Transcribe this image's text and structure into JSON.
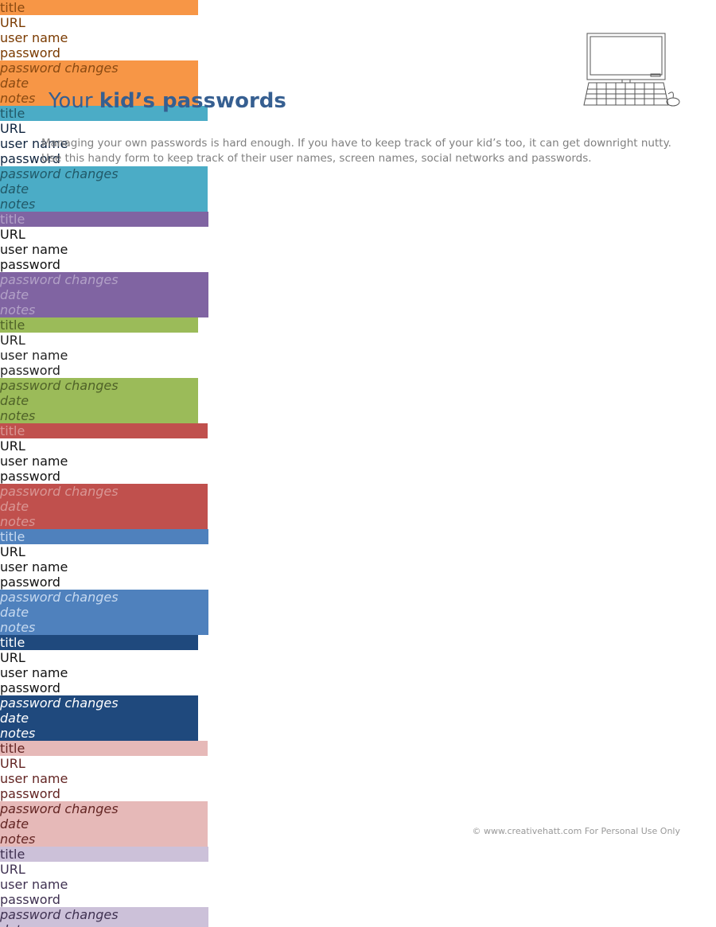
{
  "header": {
    "title_regular": "Your",
    "title_bold": "kid’s passwords",
    "intro": "Managing your own passwords is hard enough. If you have to keep track of your kid’s too, it can get downright nutty. Use this handy form to keep track of their user names, screen names, social networks and passwords."
  },
  "form": {
    "fields": {
      "title": "title",
      "url": "URL",
      "user_name": "user name",
      "password": "password",
      "password_changes": "password changes",
      "date": "date",
      "notes": "notes"
    },
    "cards": [
      {
        "fill": "#f79646",
        "border": "#b9651f",
        "head_text": "#8a4a12",
        "body_text": "#7a3a00"
      },
      {
        "fill": "#4bacc6",
        "border": "#31859c",
        "head_text": "#215968",
        "body_text": "#0f243e"
      },
      {
        "fill": "#8064a2",
        "border": "#5f497a",
        "head_text": "#b2a1c7",
        "body_text": "#111111"
      },
      {
        "fill": "#9bbb59",
        "border": "#76923c",
        "head_text": "#4f6228",
        "body_text": "#222222"
      },
      {
        "fill": "#c0504d",
        "border": "#943634",
        "head_text": "#d99694",
        "body_text": "#111111"
      },
      {
        "fill": "#4f81bd",
        "border": "#365f91",
        "head_text": "#c6d9f0",
        "body_text": "#111111"
      },
      {
        "fill": "#1f497d",
        "border": "#17365d",
        "head_text": "#ffffff",
        "body_text": "#111111"
      },
      {
        "fill": "#e6b9b8",
        "border": "#943634",
        "head_text": "#632523",
        "body_text": "#632523"
      },
      {
        "fill": "#ccc1d9",
        "border": "#5f497a",
        "head_text": "#3f3151",
        "body_text": "#3f3151"
      }
    ]
  },
  "footer": {
    "copyright": "©",
    "link": "www.creativehatt.com",
    "note": "For Personal Use Only"
  }
}
